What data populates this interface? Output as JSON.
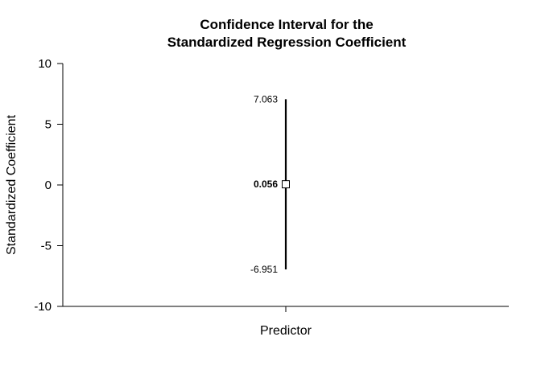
{
  "chart_data": {
    "type": "errorbar",
    "title_lines": [
      "Confidence Interval for the",
      "Standardized Regression Coefficient"
    ],
    "xlabel": "Predictor",
    "ylabel": "Standardized Coefficient",
    "ylim": [
      -10,
      10
    ],
    "yticks": [
      -10,
      -5,
      0,
      5,
      10
    ],
    "categories": [
      "Predictor"
    ],
    "estimate": 0.056,
    "lower": -6.951,
    "upper": 7.063,
    "labels": {
      "estimate": "0.056",
      "lower": "-6.951",
      "upper": "7.063"
    }
  }
}
